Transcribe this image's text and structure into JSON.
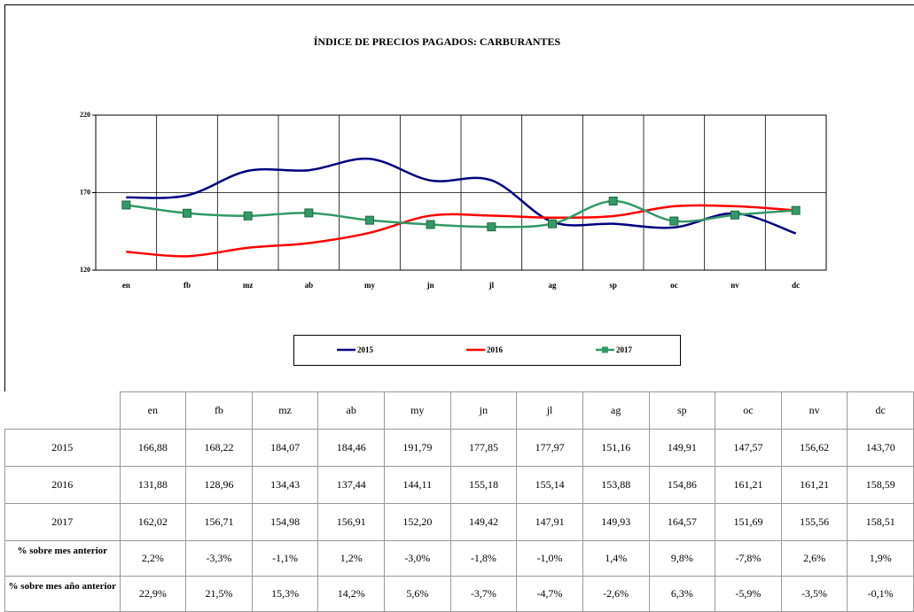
{
  "chart_data": {
    "type": "line",
    "title": "ÍNDICE DE PRECIOS PAGADOS: CARBURANTES",
    "categories": [
      "en",
      "fb",
      "mz",
      "ab",
      "my",
      "jn",
      "jl",
      "ag",
      "sp",
      "oc",
      "nv",
      "dc"
    ],
    "ylim": [
      120,
      220
    ],
    "yticks": [
      120,
      170,
      220
    ],
    "grid": true,
    "legend": "bottom",
    "series": [
      {
        "name": "2015",
        "color": "#000080",
        "marker": false,
        "values": [
          166.88,
          168.22,
          184.07,
          184.46,
          191.79,
          177.85,
          177.97,
          151.16,
          149.91,
          147.57,
          156.62,
          143.7
        ],
        "value_labels": [
          "166,88",
          "168,22",
          "184,07",
          "184,46",
          "191,79",
          "177,85",
          "177,97",
          "151,16",
          "149,91",
          "147,57",
          "156,62",
          "143,70"
        ]
      },
      {
        "name": "2016",
        "color": "#ff0000",
        "marker": false,
        "values": [
          131.88,
          128.96,
          134.43,
          137.44,
          144.11,
          155.18,
          155.14,
          153.88,
          154.86,
          161.21,
          161.21,
          158.59
        ],
        "value_labels": [
          "131,88",
          "128,96",
          "134,43",
          "137,44",
          "144,11",
          "155,18",
          "155,14",
          "153,88",
          "154,86",
          "161,21",
          "161,21",
          "158,59"
        ]
      },
      {
        "name": "2017",
        "color": "#339966",
        "marker": true,
        "values": [
          162.02,
          156.71,
          154.98,
          156.91,
          152.2,
          149.42,
          147.91,
          149.93,
          164.57,
          151.69,
          155.56,
          158.51
        ],
        "value_labels": [
          "162,02",
          "156,71",
          "154,98",
          "156,91",
          "152,20",
          "149,42",
          "147,91",
          "149,93",
          "164,57",
          "151,69",
          "155,56",
          "158,51"
        ]
      }
    ]
  },
  "table": {
    "rows": [
      {
        "label": "% sobre mes anterior",
        "cells": [
          "2,2%",
          "-3,3%",
          "-1,1%",
          "1,2%",
          "-3,0%",
          "-1,8%",
          "-1,0%",
          "1,4%",
          "9,8%",
          "-7,8%",
          "2,6%",
          "1,9%"
        ]
      },
      {
        "label": "% sobre mes año anterior",
        "cells": [
          "22,9%",
          "21,5%",
          "15,3%",
          "14,2%",
          "5,6%",
          "-3,7%",
          "-4,7%",
          "-2,6%",
          "6,3%",
          "-5,9%",
          "-3,5%",
          "-0,1%"
        ]
      }
    ]
  }
}
